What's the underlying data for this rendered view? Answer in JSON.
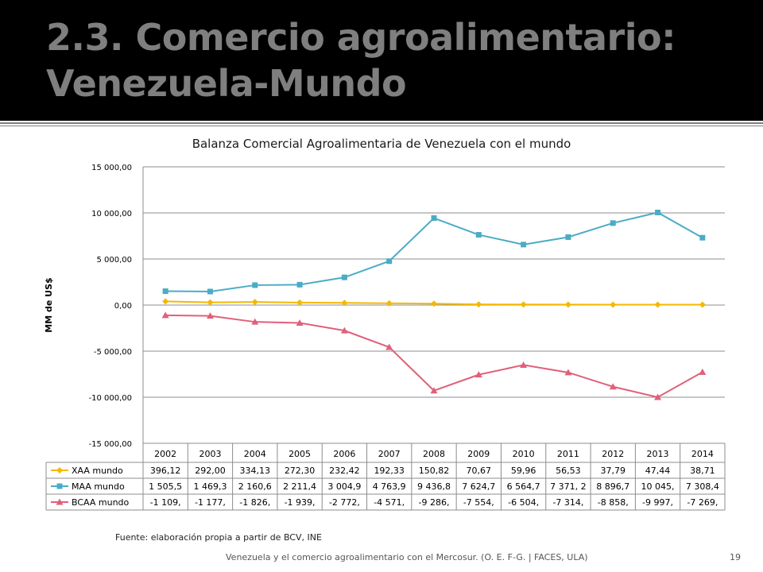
{
  "slide": {
    "title": "2.3. Comercio agroalimentario: Venezuela-Mundo",
    "source": "Fuente: elaboración propia a partir de BCV, INE",
    "footer": "Venezuela y el comercio agroalimentario con el Mercosur. (O. E. F-G. | FACES, ULA)",
    "page_number": "19"
  },
  "colors": {
    "title_band": "#000000",
    "title_text": "#7f7f7f",
    "XAA": "#f5b800",
    "MAA": "#4bacc6",
    "BCAA": "#e0607a"
  },
  "chart_data": {
    "type": "line",
    "title": "Balanza Comercial Agroalimentaria de Venezuela con el mundo",
    "ylabel": "MM de US$",
    "ylim": [
      -15000,
      15000
    ],
    "yticks": [
      15000,
      10000,
      5000,
      0,
      -5000,
      -10000,
      -15000
    ],
    "ytick_labels": [
      "15 000,00",
      "10 000,00",
      "5 000,00",
      "0,00",
      "-5 000,00",
      "-10 000,00",
      "-15 000,00"
    ],
    "grid": true,
    "categories": [
      "2002",
      "2003",
      "2004",
      "2005",
      "2006",
      "2007",
      "2008",
      "2009",
      "2010",
      "2011",
      "2012",
      "2013",
      "2014"
    ],
    "series": [
      {
        "name": "XAA mundo",
        "marker": "diamond",
        "color": "#f5b800",
        "values": [
          396.12,
          292.0,
          334.13,
          272.3,
          232.42,
          192.33,
          150.82,
          70.67,
          59.96,
          56.53,
          37.79,
          47.44,
          38.71
        ],
        "labels": [
          "396,12",
          "292,00",
          "334,13",
          "272,30",
          "232,42",
          "192,33",
          "150,82",
          "70,67",
          "59,96",
          "56,53",
          "37,79",
          "47,44",
          "38,71"
        ]
      },
      {
        "name": "MAA mundo",
        "marker": "square",
        "color": "#4bacc6",
        "values": [
          1505.5,
          1469.3,
          2160.6,
          2211.4,
          3004.9,
          4763.9,
          9436.8,
          7624.7,
          6564.7,
          7371.2,
          8896.7,
          10045,
          7308.4
        ],
        "labels": [
          "1 505,5",
          "1 469,3",
          "2 160,6",
          "2 211,4",
          "3 004,9",
          "4 763,9",
          "9 436,8",
          "7 624,7",
          "6 564,7",
          "7 371, 2",
          "8 896,7",
          "10 045,",
          "7 308,4"
        ]
      },
      {
        "name": "BCAA mundo",
        "marker": "triangle",
        "color": "#e0607a",
        "values": [
          -1109,
          -1177,
          -1826,
          -1939,
          -2772,
          -4571,
          -9286,
          -7554,
          -6504,
          -7314,
          -8858,
          -9997,
          -7269
        ],
        "labels": [
          "-1 109,",
          "-1 177,",
          "-1 826,",
          "-1 939,",
          "-2 772,",
          "-4 571,",
          "-9 286,",
          "-7 554,",
          "-6 504,",
          "-7 314,",
          "-8 858,",
          "-9 997,",
          "-7 269,"
        ]
      }
    ]
  }
}
